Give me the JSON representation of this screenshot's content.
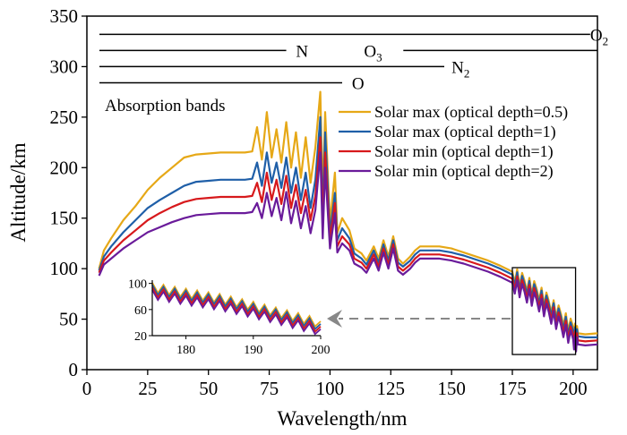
{
  "chart_data": {
    "type": "line",
    "xlabel": "Wavelength/nm",
    "ylabel": "Altitude/km",
    "xlim": [
      0,
      210
    ],
    "ylim": [
      0,
      350
    ],
    "xticks": [
      "0",
      "25",
      "50",
      "75",
      "100",
      "125",
      "150",
      "175",
      "200"
    ],
    "yticks": [
      "0",
      "50",
      "100",
      "150",
      "200",
      "250",
      "300",
      "350"
    ],
    "grid": false,
    "legend_position": "right",
    "absorption_bands_label": "Absorption bands",
    "absorption_bands": [
      {
        "label_main": "O",
        "label_sub": "2",
        "x_start": 0,
        "x_end": 207,
        "y": 332,
        "label_x": 207
      },
      {
        "label_main": "N",
        "label_sub": "",
        "x_start": 0,
        "x_end": 82,
        "y": 316,
        "label_x": 86
      },
      {
        "label_main": "O",
        "label_sub": "3",
        "x_start": 125,
        "x_end": 210,
        "y": 316,
        "label_x": 114
      },
      {
        "label_main": "N",
        "label_sub": "2",
        "x_start": 0,
        "x_end": 147,
        "y": 300,
        "label_x": 150
      },
      {
        "label_main": "O",
        "label_sub": "",
        "x_start": 0,
        "x_end": 105,
        "y": 284,
        "label_x": 109
      }
    ],
    "series": [
      {
        "name": "Solar max (optical depth=0.5)",
        "color": "#E6A817",
        "points": [
          [
            5,
            100
          ],
          [
            7,
            118
          ],
          [
            10,
            130
          ],
          [
            15,
            148
          ],
          [
            20,
            162
          ],
          [
            25,
            178
          ],
          [
            30,
            190
          ],
          [
            35,
            200
          ],
          [
            40,
            210
          ],
          [
            45,
            213
          ],
          [
            50,
            214
          ],
          [
            55,
            215
          ],
          [
            60,
            215
          ],
          [
            65,
            215
          ],
          [
            68,
            216
          ],
          [
            70,
            240
          ],
          [
            72,
            208
          ],
          [
            74,
            255
          ],
          [
            76,
            210
          ],
          [
            78,
            238
          ],
          [
            80,
            205
          ],
          [
            82,
            245
          ],
          [
            84,
            200
          ],
          [
            86,
            235
          ],
          [
            88,
            190
          ],
          [
            90,
            230
          ],
          [
            92,
            185
          ],
          [
            94,
            220
          ],
          [
            96,
            275
          ],
          [
            97,
            170
          ],
          [
            98,
            255
          ],
          [
            100,
            145
          ],
          [
            102,
            195
          ],
          [
            103,
            135
          ],
          [
            105,
            150
          ],
          [
            108,
            138
          ],
          [
            110,
            120
          ],
          [
            113,
            115
          ],
          [
            115,
            108
          ],
          [
            118,
            122
          ],
          [
            120,
            110
          ],
          [
            122,
            128
          ],
          [
            124,
            112
          ],
          [
            126,
            132
          ],
          [
            128,
            110
          ],
          [
            130,
            105
          ],
          [
            133,
            112
          ],
          [
            135,
            118
          ],
          [
            137,
            122
          ],
          [
            140,
            122
          ],
          [
            145,
            122
          ],
          [
            150,
            120
          ],
          [
            155,
            116
          ],
          [
            160,
            112
          ],
          [
            165,
            108
          ],
          [
            170,
            103
          ],
          [
            175,
            97
          ],
          [
            180,
            88
          ],
          [
            185,
            80
          ],
          [
            190,
            68
          ],
          [
            195,
            55
          ],
          [
            200,
            42
          ],
          [
            202,
            36
          ],
          [
            205,
            35
          ],
          [
            210,
            36
          ]
        ]
      },
      {
        "name": "Solar max (optical depth=1)",
        "color": "#1F5FA8",
        "points": [
          [
            5,
            98
          ],
          [
            7,
            112
          ],
          [
            10,
            122
          ],
          [
            15,
            136
          ],
          [
            20,
            148
          ],
          [
            25,
            160
          ],
          [
            30,
            168
          ],
          [
            35,
            175
          ],
          [
            40,
            182
          ],
          [
            45,
            186
          ],
          [
            50,
            187
          ],
          [
            55,
            188
          ],
          [
            60,
            188
          ],
          [
            65,
            188
          ],
          [
            68,
            189
          ],
          [
            70,
            205
          ],
          [
            72,
            182
          ],
          [
            74,
            215
          ],
          [
            76,
            185
          ],
          [
            78,
            205
          ],
          [
            80,
            180
          ],
          [
            82,
            210
          ],
          [
            84,
            175
          ],
          [
            86,
            200
          ],
          [
            88,
            168
          ],
          [
            90,
            195
          ],
          [
            92,
            160
          ],
          [
            94,
            188
          ],
          [
            96,
            250
          ],
          [
            97,
            152
          ],
          [
            98,
            235
          ],
          [
            100,
            135
          ],
          [
            102,
            175
          ],
          [
            103,
            128
          ],
          [
            105,
            140
          ],
          [
            108,
            130
          ],
          [
            110,
            115
          ],
          [
            113,
            110
          ],
          [
            115,
            104
          ],
          [
            118,
            118
          ],
          [
            120,
            106
          ],
          [
            122,
            124
          ],
          [
            124,
            108
          ],
          [
            126,
            128
          ],
          [
            128,
            106
          ],
          [
            130,
            102
          ],
          [
            133,
            108
          ],
          [
            135,
            114
          ],
          [
            137,
            118
          ],
          [
            140,
            118
          ],
          [
            145,
            118
          ],
          [
            150,
            116
          ],
          [
            155,
            113
          ],
          [
            160,
            109
          ],
          [
            165,
            105
          ],
          [
            170,
            100
          ],
          [
            175,
            94
          ],
          [
            180,
            85
          ],
          [
            185,
            77
          ],
          [
            190,
            65
          ],
          [
            195,
            52
          ],
          [
            200,
            38
          ],
          [
            202,
            33
          ],
          [
            205,
            32
          ],
          [
            210,
            32
          ]
        ]
      },
      {
        "name": "Solar min (optical depth=1)",
        "color": "#D7191C",
        "points": [
          [
            5,
            96
          ],
          [
            7,
            108
          ],
          [
            10,
            116
          ],
          [
            15,
            128
          ],
          [
            20,
            138
          ],
          [
            25,
            148
          ],
          [
            30,
            155
          ],
          [
            35,
            161
          ],
          [
            40,
            166
          ],
          [
            45,
            169
          ],
          [
            50,
            170
          ],
          [
            55,
            171
          ],
          [
            60,
            171
          ],
          [
            65,
            171
          ],
          [
            68,
            172
          ],
          [
            70,
            185
          ],
          [
            72,
            166
          ],
          [
            74,
            195
          ],
          [
            76,
            168
          ],
          [
            78,
            188
          ],
          [
            80,
            164
          ],
          [
            82,
            192
          ],
          [
            84,
            160
          ],
          [
            86,
            183
          ],
          [
            88,
            155
          ],
          [
            90,
            178
          ],
          [
            92,
            148
          ],
          [
            94,
            172
          ],
          [
            96,
            230
          ],
          [
            97,
            142
          ],
          [
            98,
            215
          ],
          [
            100,
            128
          ],
          [
            102,
            165
          ],
          [
            103,
            122
          ],
          [
            105,
            132
          ],
          [
            108,
            124
          ],
          [
            110,
            110
          ],
          [
            113,
            106
          ],
          [
            115,
            100
          ],
          [
            118,
            114
          ],
          [
            120,
            102
          ],
          [
            122,
            120
          ],
          [
            124,
            104
          ],
          [
            126,
            124
          ],
          [
            128,
            102
          ],
          [
            130,
            98
          ],
          [
            133,
            104
          ],
          [
            135,
            110
          ],
          [
            137,
            114
          ],
          [
            140,
            114
          ],
          [
            145,
            114
          ],
          [
            150,
            112
          ],
          [
            155,
            109
          ],
          [
            160,
            105
          ],
          [
            165,
            101
          ],
          [
            170,
            96
          ],
          [
            175,
            90
          ],
          [
            180,
            81
          ],
          [
            185,
            73
          ],
          [
            190,
            61
          ],
          [
            195,
            48
          ],
          [
            200,
            34
          ],
          [
            202,
            29
          ],
          [
            205,
            28
          ],
          [
            210,
            29
          ]
        ]
      },
      {
        "name": "Solar min (optical depth=2)",
        "color": "#6A1B9A",
        "points": [
          [
            5,
            93
          ],
          [
            7,
            104
          ],
          [
            10,
            110
          ],
          [
            15,
            120
          ],
          [
            20,
            128
          ],
          [
            25,
            136
          ],
          [
            30,
            141
          ],
          [
            35,
            146
          ],
          [
            40,
            150
          ],
          [
            45,
            153
          ],
          [
            50,
            154
          ],
          [
            55,
            155
          ],
          [
            60,
            155
          ],
          [
            65,
            155
          ],
          [
            68,
            156
          ],
          [
            70,
            165
          ],
          [
            72,
            150
          ],
          [
            74,
            175
          ],
          [
            76,
            152
          ],
          [
            78,
            170
          ],
          [
            80,
            148
          ],
          [
            82,
            176
          ],
          [
            84,
            145
          ],
          [
            86,
            167
          ],
          [
            88,
            140
          ],
          [
            90,
            162
          ],
          [
            92,
            135
          ],
          [
            94,
            158
          ],
          [
            96,
            215
          ],
          [
            97,
            130
          ],
          [
            98,
            200
          ],
          [
            100,
            120
          ],
          [
            102,
            155
          ],
          [
            103,
            116
          ],
          [
            105,
            125
          ],
          [
            108,
            118
          ],
          [
            110,
            105
          ],
          [
            113,
            101
          ],
          [
            115,
            96
          ],
          [
            118,
            110
          ],
          [
            120,
            98
          ],
          [
            122,
            116
          ],
          [
            124,
            100
          ],
          [
            126,
            120
          ],
          [
            128,
            98
          ],
          [
            130,
            94
          ],
          [
            133,
            100
          ],
          [
            135,
            106
          ],
          [
            137,
            110
          ],
          [
            140,
            110
          ],
          [
            145,
            110
          ],
          [
            150,
            108
          ],
          [
            155,
            105
          ],
          [
            160,
            101
          ],
          [
            165,
            97
          ],
          [
            170,
            92
          ],
          [
            175,
            86
          ],
          [
            180,
            77
          ],
          [
            185,
            69
          ],
          [
            190,
            57
          ],
          [
            195,
            44
          ],
          [
            200,
            30
          ],
          [
            202,
            25
          ],
          [
            205,
            24
          ],
          [
            210,
            25
          ]
        ]
      }
    ],
    "inset": {
      "type": "line",
      "xlim": [
        175,
        200
      ],
      "ylim": [
        20,
        105
      ],
      "xticks": [
        "180",
        "190",
        "200"
      ],
      "yticks": [
        "20",
        "60",
        "100"
      ],
      "description_colors": [
        "#E6A817",
        "#1F5FA8",
        "#D7191C",
        "#6A1B9A"
      ]
    },
    "zoom_box": {
      "x_range": [
        175,
        201
      ],
      "y_range": [
        15,
        101
      ]
    }
  }
}
